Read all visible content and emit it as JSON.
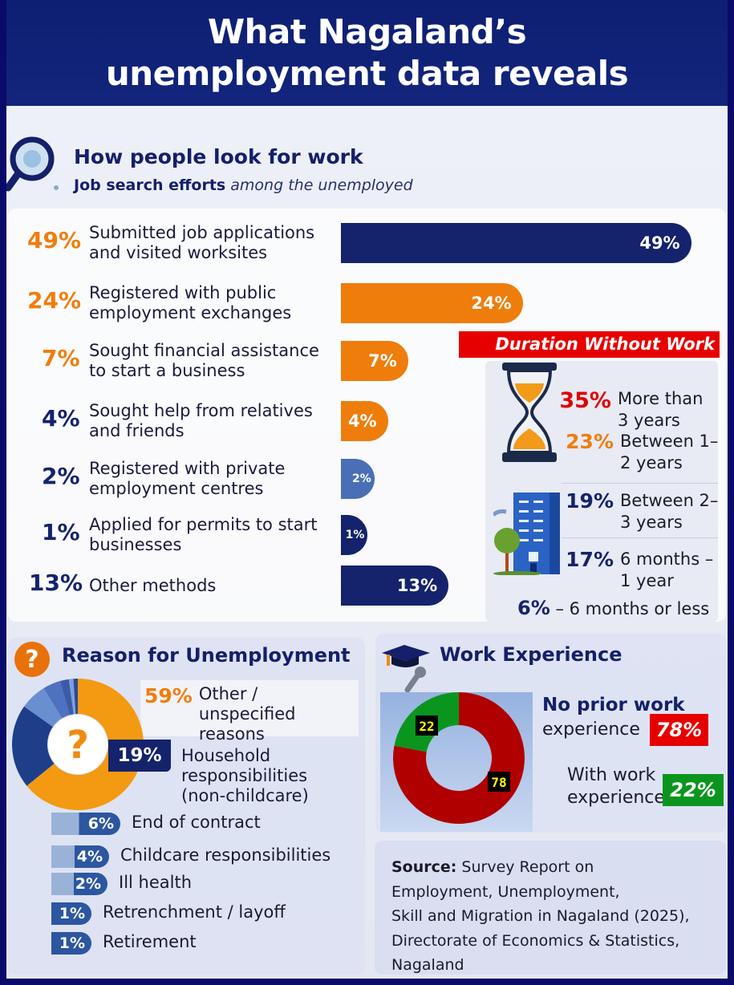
{
  "title": "What Nagaland’s unemployment data reveals",
  "colors": {
    "navy": "#14236b",
    "orange": "#ef7d0c",
    "blue": "#4a6fb5",
    "red": "#e60000",
    "green": "#0a961e",
    "dark_red": "#b00000"
  },
  "chart_data": [
    {
      "type": "bar",
      "title": "How people look for work",
      "subtitle_bold": "Job search efforts",
      "subtitle_italic": "among the unemployed",
      "categories": [
        "Submitted job applications and visited worksites",
        "Registered with public employment exchanges",
        "Sought financial assistance to start a business",
        "Sought help from relatives and friends",
        "Registered with private employment centres",
        "Applied for permits to start businesses",
        "Other methods"
      ],
      "values": [
        49,
        24,
        7,
        4,
        2,
        1,
        13
      ],
      "unit": "%",
      "bar_colors": [
        "#14236b",
        "#ef7d0c",
        "#ef7d0c",
        "#ef7d0c",
        "#4a6fb5",
        "#14236b",
        "#14236b"
      ],
      "pct_colors": [
        "#ef7d0c",
        "#ef7d0c",
        "#ef7d0c",
        "#14236b",
        "#14236b",
        "#14236b",
        "#14236b"
      ]
    },
    {
      "type": "table",
      "title": "Duration Without Work",
      "categories": [
        "More than 3 years",
        "Between 1–2 years",
        "Between 2–3 years",
        "6 months – 1 year",
        "6 months or less"
      ],
      "values": [
        35,
        23,
        19,
        17,
        6
      ],
      "unit": "%"
    },
    {
      "type": "pie",
      "title": "Reason for Unemployment",
      "categories": [
        "Other / unspecified reasons",
        "Household responsibilities (non-childcare)",
        "End of contract",
        "Childcare responsibilities",
        "Ill health",
        "Retrenchment / layoff",
        "Retirement"
      ],
      "values": [
        59,
        19,
        6,
        4,
        2,
        1,
        1
      ],
      "unit": "%"
    },
    {
      "type": "pie",
      "title": "Work Experience",
      "categories": [
        "No prior work experience",
        "With work experience"
      ],
      "values": [
        78,
        22
      ],
      "unit": "%",
      "slice_colors": [
        "#b00000",
        "#0a961e"
      ]
    }
  ],
  "duration": {
    "rows": [
      {
        "pct": "35%",
        "label": "More than 3 years",
        "color": "#e00000"
      },
      {
        "pct": "23%",
        "label": "Between 1–2 years",
        "color": "#ef7d0c"
      },
      {
        "pct": "19%",
        "label": "Between 2–3 years",
        "color": "#14236b"
      },
      {
        "pct": "17%",
        "label": "6 months – 1 year",
        "color": "#14236b"
      }
    ],
    "last_pct": "6%",
    "last_label": "– 6 months or less"
  },
  "reasons": {
    "top_pct": "59%",
    "top_label": "Other / unspecified reasons",
    "hh_pct": "19%",
    "hh_label": "Household responsibilities (non-childcare)",
    "small": [
      {
        "pct": "6%",
        "label": "End of contract"
      },
      {
        "pct": "4%",
        "label": "Childcare responsibilities"
      },
      {
        "pct": "2%",
        "label": "Ill health"
      },
      {
        "pct": "1%",
        "label": "Retrenchment / layoff"
      },
      {
        "pct": "1%",
        "label": "Retirement"
      }
    ]
  },
  "work": {
    "no_label_1": "No prior work",
    "no_label_2": "experience",
    "no_pct": "78%",
    "with_label_1": "With work",
    "with_label_2": "experience",
    "with_pct": "22%",
    "donut_labels": [
      "78",
      "22"
    ]
  },
  "source": {
    "bold": "Source:",
    "line1": " Survey Report on",
    "line2": "Employment, Unemployment,",
    "line3": "Skill and Migration in Nagaland (2025),",
    "line4": "Directorate of Economics & Statistics,",
    "line5": "Nagaland"
  }
}
